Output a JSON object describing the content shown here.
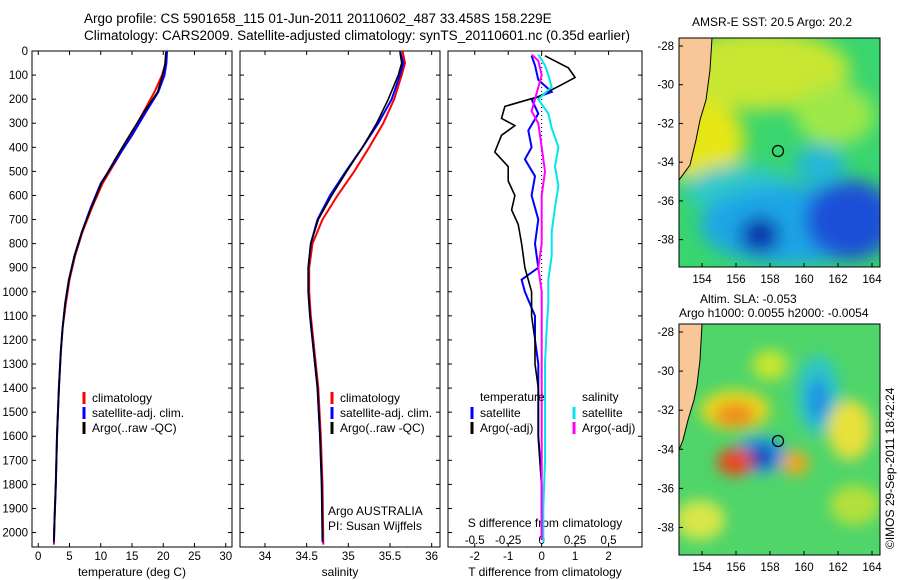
{
  "header": {
    "line1": "Argo profile: CS 5901658_115 01-Jun-2011 20110602_487 33.458S 158.229E",
    "line2": "Climatology: CARS2009. Satellite-adjusted climatology: synTS_20110601.nc (0.35d earlier)"
  },
  "colors": {
    "climatology": "#ff0000",
    "satellite": "#0000ff",
    "argo": "#000000",
    "sat_salinity": "#00e5ee",
    "argo_salinity": "#ff00ff"
  },
  "depth_axis": {
    "ticks": [
      0,
      100,
      200,
      300,
      400,
      500,
      600,
      700,
      800,
      900,
      1000,
      1100,
      1200,
      1300,
      1400,
      1500,
      1600,
      1700,
      1800,
      1900,
      2000
    ],
    "range": [
      0,
      2060
    ]
  },
  "chart_data": [
    {
      "type": "line",
      "name": "temperature",
      "xlabel": "temperature (deg C)",
      "xlim": [
        -1,
        31
      ],
      "xticks": [
        0,
        5,
        10,
        15,
        20,
        25,
        30
      ],
      "legend": [
        "climatology",
        "satellite-adj. clim.",
        "Argo(..raw -QC)"
      ],
      "series": [
        {
          "name": "climatology",
          "color": "#ff0000",
          "points": [
            [
              20.5,
              0
            ],
            [
              20.4,
              50
            ],
            [
              19.8,
              100
            ],
            [
              18.6,
              170
            ],
            [
              16.9,
              250
            ],
            [
              14.8,
              350
            ],
            [
              12.6,
              450
            ],
            [
              10.3,
              550
            ],
            [
              8.6,
              650
            ],
            [
              7.1,
              750
            ],
            [
              5.9,
              850
            ],
            [
              5.0,
              950
            ],
            [
              4.4,
              1050
            ],
            [
              3.9,
              1150
            ],
            [
              3.6,
              1250
            ],
            [
              3.3,
              1400
            ],
            [
              3.0,
              1600
            ],
            [
              2.8,
              1800
            ],
            [
              2.6,
              1950
            ],
            [
              2.5,
              2050
            ]
          ]
        },
        {
          "name": "satellite-adj. clim.",
          "color": "#0000ff",
          "points": [
            [
              20.6,
              0
            ],
            [
              20.5,
              50
            ],
            [
              20.2,
              100
            ],
            [
              19.2,
              170
            ],
            [
              17.3,
              250
            ],
            [
              15.0,
              350
            ],
            [
              12.5,
              450
            ],
            [
              10.0,
              550
            ],
            [
              8.4,
              650
            ],
            [
              7.0,
              750
            ],
            [
              5.8,
              850
            ],
            [
              4.9,
              950
            ],
            [
              4.3,
              1050
            ],
            [
              3.9,
              1150
            ],
            [
              3.6,
              1250
            ],
            [
              3.3,
              1400
            ],
            [
              3.0,
              1600
            ],
            [
              2.8,
              1800
            ],
            [
              2.6,
              1950
            ],
            [
              2.5,
              2040
            ]
          ]
        },
        {
          "name": "Argo(..raw -QC)",
          "color": "#000000",
          "points": [
            [
              20.4,
              5
            ],
            [
              20.3,
              50
            ],
            [
              19.9,
              100
            ],
            [
              19.1,
              170
            ],
            [
              17.0,
              250
            ],
            [
              14.6,
              350
            ],
            [
              12.3,
              450
            ],
            [
              10.1,
              550
            ],
            [
              8.5,
              650
            ],
            [
              7.0,
              750
            ],
            [
              5.8,
              850
            ],
            [
              4.9,
              950
            ],
            [
              4.3,
              1050
            ],
            [
              3.9,
              1150
            ],
            [
              3.6,
              1250
            ],
            [
              3.3,
              1400
            ],
            [
              3.0,
              1600
            ],
            [
              2.8,
              1800
            ],
            [
              2.6,
              1950
            ],
            [
              2.5,
              2030
            ]
          ]
        }
      ]
    },
    {
      "type": "line",
      "name": "salinity",
      "xlabel": "salinity",
      "xlim": [
        33.7,
        36.1
      ],
      "xticks": [
        34,
        34.5,
        35,
        35.5,
        36
      ],
      "legend": [
        "climatology",
        "satellite-adj. clim.",
        "Argo(..raw -QC)"
      ],
      "annotation": [
        "Argo AUSTRALIA",
        "PI: Susan Wijffels"
      ],
      "series": [
        {
          "name": "climatology",
          "color": "#ff0000",
          "points": [
            [
              35.65,
              0
            ],
            [
              35.68,
              50
            ],
            [
              35.64,
              100
            ],
            [
              35.55,
              200
            ],
            [
              35.42,
              300
            ],
            [
              35.25,
              400
            ],
            [
              35.07,
              500
            ],
            [
              34.87,
              600
            ],
            [
              34.69,
              700
            ],
            [
              34.57,
              800
            ],
            [
              34.53,
              900
            ],
            [
              34.53,
              1000
            ],
            [
              34.55,
              1100
            ],
            [
              34.58,
              1200
            ],
            [
              34.61,
              1300
            ],
            [
              34.64,
              1400
            ],
            [
              34.67,
              1600
            ],
            [
              34.69,
              1800
            ],
            [
              34.7,
              2050
            ]
          ]
        },
        {
          "name": "satellite-adj. clim.",
          "color": "#0000ff",
          "points": [
            [
              35.62,
              0
            ],
            [
              35.66,
              50
            ],
            [
              35.62,
              100
            ],
            [
              35.52,
              200
            ],
            [
              35.36,
              300
            ],
            [
              35.17,
              400
            ],
            [
              34.97,
              500
            ],
            [
              34.78,
              600
            ],
            [
              34.63,
              700
            ],
            [
              34.55,
              800
            ],
            [
              34.52,
              900
            ],
            [
              34.52,
              1000
            ],
            [
              34.54,
              1100
            ],
            [
              34.57,
              1200
            ],
            [
              34.6,
              1300
            ],
            [
              34.63,
              1400
            ],
            [
              34.66,
              1600
            ],
            [
              34.68,
              1800
            ],
            [
              34.69,
              2040
            ]
          ]
        },
        {
          "name": "Argo(..raw -QC)",
          "color": "#000000",
          "points": [
            [
              35.62,
              5
            ],
            [
              35.64,
              50
            ],
            [
              35.6,
              100
            ],
            [
              35.48,
              200
            ],
            [
              35.34,
              300
            ],
            [
              35.17,
              400
            ],
            [
              34.98,
              500
            ],
            [
              34.8,
              600
            ],
            [
              34.64,
              700
            ],
            [
              34.55,
              800
            ],
            [
              34.52,
              900
            ],
            [
              34.52,
              1000
            ],
            [
              34.54,
              1100
            ],
            [
              34.57,
              1200
            ],
            [
              34.6,
              1300
            ],
            [
              34.63,
              1400
            ],
            [
              34.66,
              1600
            ],
            [
              34.68,
              1800
            ],
            [
              34.69,
              2030
            ]
          ]
        }
      ]
    },
    {
      "type": "line",
      "name": "difference",
      "xlabel": "T difference from climatology",
      "xlabel_top": "S difference from climatology",
      "xlim": [
        -2.8,
        3.0
      ],
      "xticks": [
        -2,
        -1,
        0,
        1,
        2
      ],
      "xticks_top": [
        {
          "label": "-0.5",
          "value": -2
        },
        {
          "label": "-0.25",
          "value": -1
        },
        {
          "label": "0",
          "value": 0
        },
        {
          "label": "0.25",
          "value": 1
        },
        {
          "label": "0.5",
          "value": 2
        }
      ],
      "legend_left": {
        "heading": "temperature",
        "items": [
          "satellite",
          "Argo(-adj)"
        ]
      },
      "legend_right": {
        "heading": "salinity",
        "items": [
          "satellite",
          "Argo(-adj)"
        ]
      },
      "series": [
        {
          "name": "temperature satellite",
          "color": "#0000ff",
          "points": [
            [
              -0.3,
              20
            ],
            [
              -0.2,
              60
            ],
            [
              -0.1,
              120
            ],
            [
              0.3,
              170
            ],
            [
              -0.3,
              200
            ],
            [
              -0.1,
              260
            ],
            [
              -0.4,
              330
            ],
            [
              -0.3,
              400
            ],
            [
              -0.5,
              450
            ],
            [
              -0.2,
              520
            ],
            [
              -0.3,
              600
            ],
            [
              -0.1,
              700
            ],
            [
              -0.2,
              800
            ],
            [
              -0.1,
              900
            ],
            [
              -0.6,
              950
            ],
            [
              -0.5,
              1000
            ],
            [
              -0.2,
              1100
            ],
            [
              -0.2,
              1200
            ],
            [
              -0.1,
              1300
            ],
            [
              -0.1,
              1400
            ],
            [
              -0.1,
              1600
            ],
            [
              0.0,
              1800
            ],
            [
              0.0,
              2030
            ]
          ]
        },
        {
          "name": "temperature Argo(-adj)",
          "color": "#000000",
          "points": [
            [
              0.1,
              20
            ],
            [
              0.8,
              70
            ],
            [
              1.0,
              110
            ],
            [
              0.6,
              140
            ],
            [
              -0.1,
              190
            ],
            [
              -1.1,
              230
            ],
            [
              -1.2,
              280
            ],
            [
              -0.8,
              310
            ],
            [
              -1.2,
              350
            ],
            [
              -1.4,
              420
            ],
            [
              -1.0,
              480
            ],
            [
              -1.0,
              540
            ],
            [
              -0.8,
              600
            ],
            [
              -0.9,
              660
            ],
            [
              -0.7,
              720
            ],
            [
              -0.6,
              800
            ],
            [
              -0.5,
              900
            ],
            [
              -0.3,
              1000
            ],
            [
              -0.3,
              1100
            ],
            [
              -0.2,
              1200
            ],
            [
              -0.2,
              1300
            ],
            [
              -0.1,
              1400
            ],
            [
              -0.1,
              1600
            ],
            [
              0.0,
              1800
            ],
            [
              0.0,
              2030
            ]
          ]
        },
        {
          "name": "salinity satellite",
          "color": "#00e5ee",
          "points": [
            [
              -0.1,
              15
            ],
            [
              0.1,
              60
            ],
            [
              0.2,
              100
            ],
            [
              0.3,
              150
            ],
            [
              -0.1,
              200
            ],
            [
              0.2,
              260
            ],
            [
              0.3,
              320
            ],
            [
              0.5,
              400
            ],
            [
              0.4,
              480
            ],
            [
              0.5,
              560
            ],
            [
              0.4,
              650
            ],
            [
              0.3,
              750
            ],
            [
              0.3,
              850
            ],
            [
              0.2,
              950
            ],
            [
              0.2,
              1050
            ],
            [
              0.15,
              1150
            ],
            [
              0.1,
              1300
            ],
            [
              0.1,
              1500
            ],
            [
              0.1,
              1700
            ],
            [
              0.05,
              1900
            ],
            [
              0.05,
              2040
            ]
          ]
        },
        {
          "name": "salinity Argo(-adj)",
          "color": "#ff00ff",
          "points": [
            [
              -0.3,
              15
            ],
            [
              -0.1,
              40
            ],
            [
              0.0,
              100
            ],
            [
              -0.1,
              150
            ],
            [
              -0.2,
              200
            ],
            [
              -0.3,
              250
            ],
            [
              -0.1,
              300
            ],
            [
              0.0,
              400
            ],
            [
              0.1,
              500
            ],
            [
              0.0,
              600
            ],
            [
              0.0,
              700
            ],
            [
              0.0,
              800
            ],
            [
              -0.1,
              900
            ],
            [
              0.0,
              1000
            ],
            [
              0.0,
              1200
            ],
            [
              0.0,
              1400
            ],
            [
              0.0,
              1600
            ],
            [
              0.0,
              1800
            ],
            [
              0.0,
              2030
            ]
          ]
        }
      ]
    }
  ],
  "maps": {
    "sst": {
      "title": "AMSR-E SST: 20.5 Argo: 20.2",
      "lon_ticks": [
        "154",
        "156",
        "158",
        "160",
        "162",
        "164"
      ],
      "lat_ticks": [
        "-28",
        "-30",
        "-32",
        "-34",
        "-36",
        "-38"
      ]
    },
    "sla": {
      "title1": "Altim. SLA: -0.053",
      "title2": "Argo h1000: 0.0055 h2000: -0.0054",
      "lon_ticks": [
        "154",
        "156",
        "158",
        "160",
        "162",
        "164"
      ],
      "lat_ticks": [
        "-28",
        "-30",
        "-32",
        "-34",
        "-36",
        "-38"
      ]
    }
  },
  "footer": {
    "stamp": "©IMOS 29-Sep-2011 18:42:24"
  }
}
